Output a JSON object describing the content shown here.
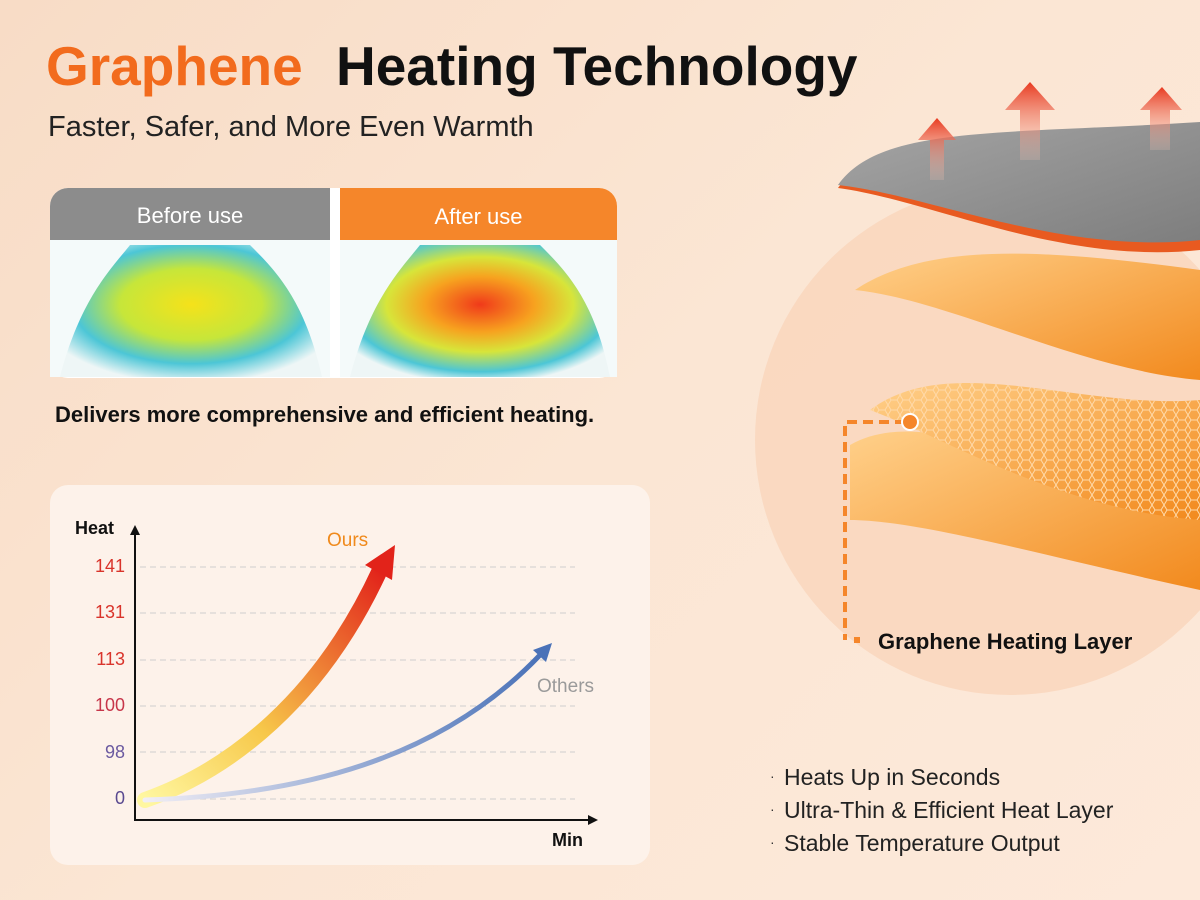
{
  "header": {
    "title_highlight": "Graphene",
    "title_rest": "Heating Technology",
    "subtitle": "Faster, Safer, and More Even Warmth"
  },
  "comparison": {
    "before_label": "Before use",
    "after_label": "After use",
    "caption": "Delivers more comprehensive and efficient heating."
  },
  "graph": {
    "y_label": "Heat",
    "x_label": "Min",
    "y_ticks": [
      141,
      131,
      113,
      100,
      98,
      0
    ],
    "series": [
      "Ours",
      "Others"
    ]
  },
  "layers": {
    "label": "Graphene Heating Layer"
  },
  "features": [
    "Heats Up in Seconds",
    "Ultra-Thin & Efficient Heat Layer",
    "Stable Temperature Output"
  ]
}
